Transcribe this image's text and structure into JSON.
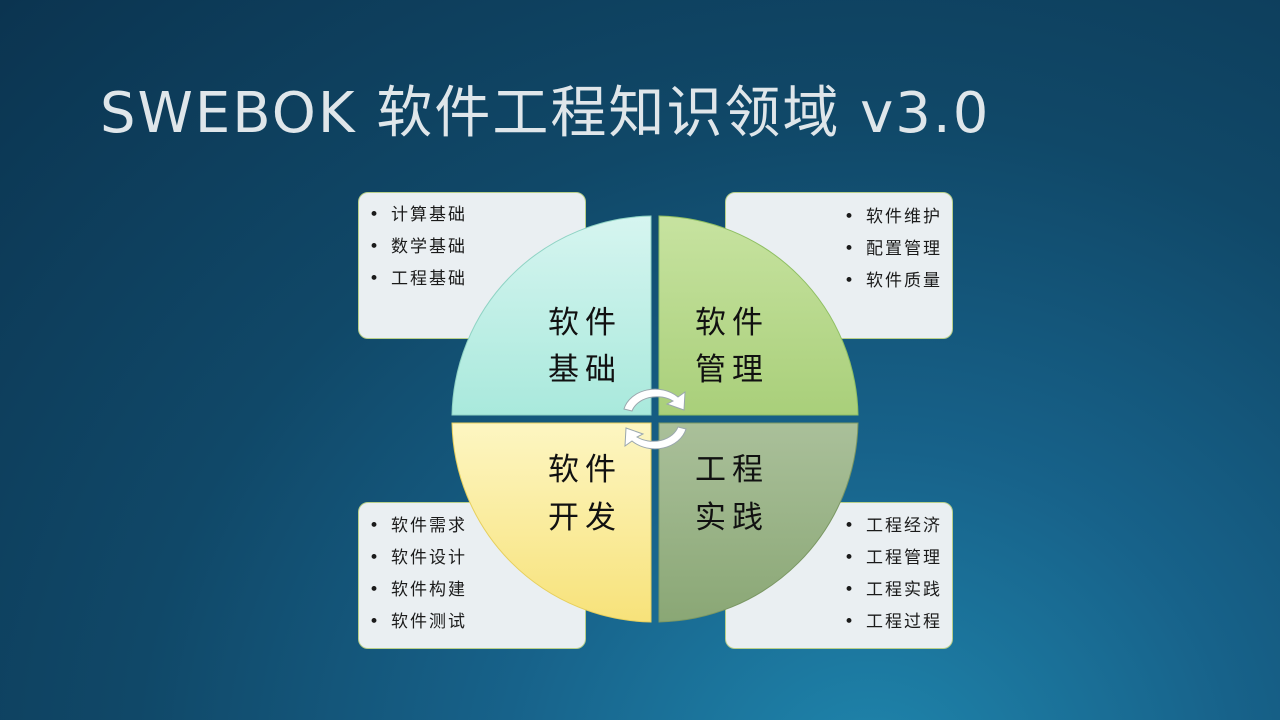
{
  "slide": {
    "title": "SWEBOK 软件工程知识领域 v3.0"
  },
  "quadrants": {
    "top_left": {
      "line1": "软件",
      "line2": "基础",
      "color_from": "#d6f5f0",
      "color_to": "#a9e9dc"
    },
    "top_right": {
      "line1": "软件",
      "line2": "管理",
      "color_from": "#c7e3a0",
      "color_to": "#a9cf7a"
    },
    "bottom_left": {
      "line1": "软件",
      "line2": "开发",
      "color_from": "#fdf6c2",
      "color_to": "#f7e27a"
    },
    "bottom_right": {
      "line1": "工程",
      "line2": "实践",
      "color_from": "#aac09a",
      "color_to": "#8aa775"
    }
  },
  "lists": {
    "top_left": [
      "计算基础",
      "数学基础",
      "工程基础"
    ],
    "top_right": [
      "软件维护",
      "配置管理",
      "软件质量"
    ],
    "bottom_left": [
      "软件需求",
      "软件设计",
      "软件构建",
      "软件测试"
    ],
    "bottom_right": [
      "工程经济",
      "工程管理",
      "工程实践",
      "工程过程"
    ]
  },
  "bullet": "•",
  "icons": {
    "center": "cycle-arrows-icon"
  }
}
